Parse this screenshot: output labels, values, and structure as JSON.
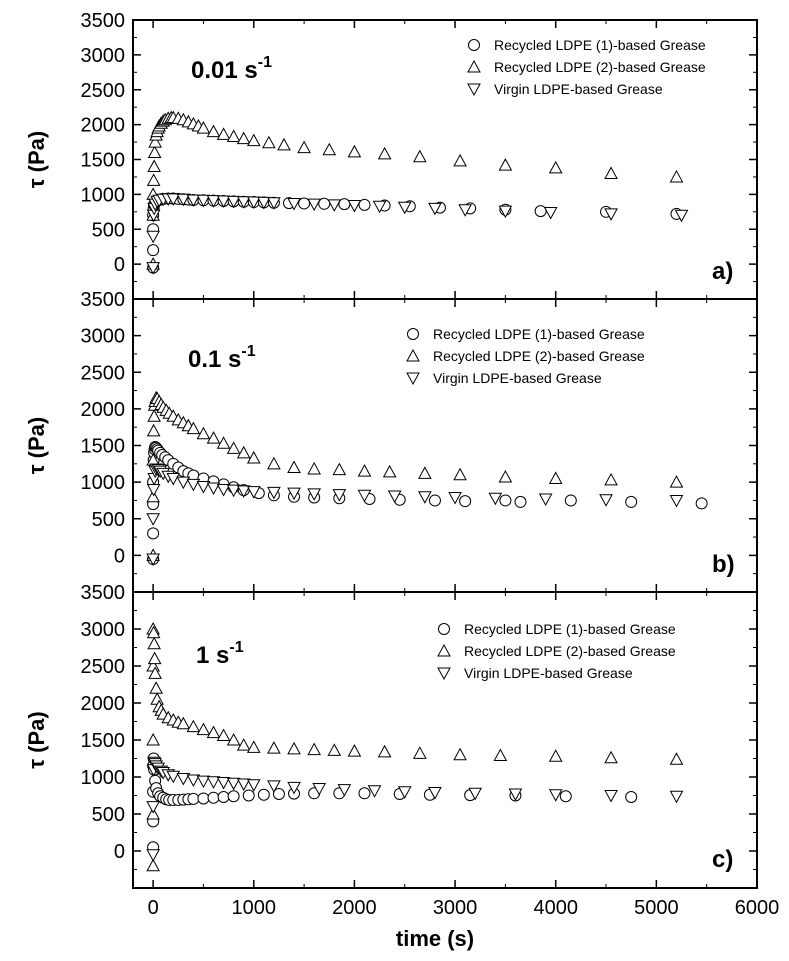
{
  "figure": {
    "xlabel": "time (s)",
    "ylabel": "τ (Pa)",
    "xlim": [
      -200,
      6000
    ],
    "ylim": [
      -500,
      3500
    ],
    "xticks": [
      0,
      1000,
      2000,
      3000,
      4000,
      5000,
      6000
    ],
    "yticks": [
      0,
      500,
      1000,
      1500,
      2000,
      2500,
      3000,
      3500
    ]
  },
  "chart_data": [
    {
      "type": "scatter",
      "panel": "a",
      "rate_main": "0.01 s",
      "rate_sup": "-1",
      "xlabel": "time (s)",
      "ylabel": "τ (Pa)",
      "xlim": [
        -200,
        6000
      ],
      "ylim": [
        -500,
        3500
      ],
      "legend_position": "top-right",
      "series": [
        {
          "name": "Recycled LDPE (1)-based Grease",
          "marker": "circle",
          "x": [
            0,
            0,
            0,
            0,
            5,
            10,
            15,
            20,
            30,
            40,
            60,
            80,
            100,
            150,
            200,
            250,
            300,
            350,
            400,
            500,
            600,
            700,
            800,
            900,
            1000,
            1100,
            1200,
            1350,
            1500,
            1700,
            1900,
            2100,
            2300,
            2550,
            2850,
            3150,
            3500,
            3850,
            4500,
            5200
          ],
          "y": [
            -50,
            200,
            500,
            700,
            800,
            850,
            870,
            880,
            900,
            910,
            920,
            930,
            935,
            940,
            940,
            935,
            930,
            925,
            920,
            915,
            910,
            905,
            900,
            895,
            890,
            885,
            880,
            875,
            870,
            865,
            860,
            850,
            840,
            830,
            810,
            800,
            780,
            760,
            750,
            720
          ]
        },
        {
          "name": "Recycled LDPE (2)-based Grease",
          "marker": "triangle-up",
          "x": [
            0,
            0,
            0,
            5,
            10,
            15,
            20,
            30,
            40,
            50,
            60,
            80,
            100,
            120,
            150,
            180,
            200,
            250,
            300,
            350,
            400,
            450,
            500,
            600,
            700,
            800,
            900,
            1000,
            1150,
            1300,
            1500,
            1750,
            2000,
            2300,
            2650,
            3050,
            3500,
            4000,
            4550,
            5200
          ],
          "y": [
            0,
            700,
            1000,
            1200,
            1400,
            1600,
            1750,
            1850,
            1900,
            1950,
            1980,
            2020,
            2050,
            2070,
            2090,
            2100,
            2100,
            2090,
            2070,
            2040,
            2010,
            1980,
            1950,
            1900,
            1860,
            1830,
            1800,
            1770,
            1740,
            1710,
            1670,
            1640,
            1610,
            1580,
            1540,
            1480,
            1420,
            1380,
            1300,
            1250
          ]
        },
        {
          "name": "Virgin LDPE-based Grease",
          "marker": "triangle-down",
          "x": [
            0,
            0,
            5,
            10,
            20,
            40,
            60,
            100,
            150,
            200,
            300,
            400,
            500,
            600,
            700,
            800,
            900,
            1000,
            1100,
            1200,
            1400,
            1600,
            1800,
            2000,
            2250,
            2500,
            2800,
            3100,
            3500,
            3950,
            4550,
            5250
          ],
          "y": [
            -50,
            400,
            700,
            800,
            860,
            900,
            915,
            930,
            935,
            935,
            930,
            920,
            915,
            910,
            905,
            900,
            895,
            890,
            885,
            880,
            870,
            860,
            850,
            840,
            830,
            815,
            800,
            780,
            760,
            740,
            720,
            700
          ]
        }
      ],
      "annotations": [
        "a)"
      ]
    },
    {
      "type": "scatter",
      "panel": "b",
      "rate_main": "0.1 s",
      "rate_sup": "-1",
      "xlabel": "time (s)",
      "ylabel": "τ (Pa)",
      "xlim": [
        -200,
        6000
      ],
      "ylim": [
        -500,
        3500
      ],
      "legend_position": "top-right",
      "series": [
        {
          "name": "Recycled LDPE (1)-based Grease",
          "marker": "circle",
          "x": [
            0,
            0,
            0,
            0,
            5,
            10,
            15,
            20,
            30,
            40,
            50,
            70,
            90,
            120,
            150,
            200,
            250,
            300,
            350,
            400,
            500,
            600,
            700,
            800,
            900,
            1050,
            1200,
            1400,
            1600,
            1850,
            2150,
            2450,
            2800,
            3100,
            3500,
            3650,
            4150,
            4750,
            5450
          ],
          "y": [
            -50,
            300,
            700,
            1000,
            1300,
            1400,
            1450,
            1480,
            1470,
            1450,
            1430,
            1400,
            1370,
            1340,
            1300,
            1250,
            1200,
            1150,
            1120,
            1090,
            1050,
            1010,
            970,
            930,
            890,
            850,
            820,
            800,
            790,
            780,
            770,
            760,
            750,
            740,
            750,
            730,
            750,
            730,
            710
          ]
        },
        {
          "name": "Recycled LDPE (2)-based Grease",
          "marker": "triangle-up",
          "x": [
            0,
            0,
            0,
            5,
            10,
            15,
            20,
            30,
            40,
            60,
            80,
            100,
            130,
            160,
            200,
            250,
            300,
            350,
            400,
            500,
            600,
            700,
            800,
            900,
            1000,
            1200,
            1400,
            1600,
            1850,
            2100,
            2350,
            2700,
            3050,
            3500,
            4000,
            4550,
            5200
          ],
          "y": [
            0,
            800,
            1300,
            1700,
            1900,
            2050,
            2100,
            2150,
            2140,
            2100,
            2060,
            2020,
            1980,
            1940,
            1900,
            1850,
            1810,
            1770,
            1730,
            1660,
            1600,
            1530,
            1460,
            1400,
            1330,
            1250,
            1200,
            1180,
            1170,
            1150,
            1140,
            1120,
            1100,
            1070,
            1050,
            1030,
            1000
          ]
        },
        {
          "name": "Virgin LDPE-based Grease",
          "marker": "triangle-down",
          "x": [
            0,
            0,
            5,
            10,
            20,
            30,
            50,
            70,
            100,
            150,
            200,
            300,
            400,
            500,
            600,
            700,
            800,
            900,
            1000,
            1200,
            1400,
            1600,
            1850,
            2100,
            2400,
            2700,
            3000,
            3400,
            3900,
            4500,
            5200
          ],
          "y": [
            -50,
            500,
            900,
            1050,
            1150,
            1180,
            1170,
            1150,
            1120,
            1080,
            1050,
            1000,
            970,
            940,
            920,
            900,
            890,
            880,
            870,
            860,
            850,
            840,
            830,
            820,
            810,
            800,
            790,
            780,
            770,
            760,
            750
          ]
        }
      ],
      "annotations": [
        "b)"
      ]
    },
    {
      "type": "scatter",
      "panel": "c",
      "rate_main": "1 s",
      "rate_sup": "-1",
      "xlabel": "time (s)",
      "ylabel": "τ (Pa)",
      "xlim": [
        -200,
        6000
      ],
      "ylim": [
        -500,
        3500
      ],
      "legend_position": "top-right",
      "series": [
        {
          "name": "Recycled LDPE (1)-based Grease",
          "marker": "circle",
          "x": [
            0,
            0,
            0,
            0,
            5,
            10,
            20,
            30,
            50,
            70,
            100,
            130,
            160,
            200,
            250,
            300,
            350,
            400,
            500,
            600,
            700,
            800,
            950,
            1100,
            1250,
            1400,
            1600,
            1850,
            2100,
            2450,
            2750,
            3150,
            3600,
            4100,
            4750
          ],
          "y": [
            50,
            400,
            800,
            1150,
            1250,
            1100,
            950,
            850,
            780,
            740,
            720,
            700,
            690,
            690,
            690,
            695,
            700,
            705,
            710,
            720,
            730,
            740,
            750,
            760,
            770,
            775,
            780,
            780,
            780,
            770,
            760,
            755,
            750,
            740,
            730
          ]
        },
        {
          "name": "Recycled LDPE (2)-based Grease",
          "marker": "triangle-up",
          "x": [
            0,
            0,
            0,
            0,
            0,
            5,
            10,
            15,
            20,
            30,
            40,
            60,
            80,
            100,
            150,
            200,
            250,
            300,
            400,
            500,
            600,
            700,
            800,
            900,
            1000,
            1200,
            1400,
            1600,
            1800,
            2000,
            2300,
            2650,
            3050,
            3450,
            4000,
            4550,
            5200
          ],
          "y": [
            -200,
            500,
            1500,
            2500,
            3000,
            2950,
            2800,
            2600,
            2400,
            2200,
            2050,
            1950,
            1900,
            1850,
            1800,
            1770,
            1740,
            1720,
            1680,
            1640,
            1600,
            1560,
            1500,
            1430,
            1400,
            1390,
            1380,
            1370,
            1360,
            1350,
            1340,
            1320,
            1300,
            1290,
            1280,
            1260,
            1240
          ]
        },
        {
          "name": "Virgin LDPE-based Grease",
          "marker": "triangle-down",
          "x": [
            0,
            0,
            5,
            10,
            20,
            30,
            50,
            80,
            100,
            150,
            200,
            300,
            400,
            500,
            600,
            700,
            800,
            900,
            1000,
            1200,
            1400,
            1650,
            1900,
            2200,
            2500,
            2800,
            3200,
            3600,
            4000,
            4550,
            5200
          ],
          "y": [
            -50,
            600,
            1100,
            1200,
            1180,
            1150,
            1120,
            1080,
            1060,
            1030,
            1010,
            980,
            960,
            945,
            935,
            925,
            915,
            905,
            895,
            880,
            860,
            845,
            830,
            815,
            800,
            790,
            780,
            770,
            760,
            750,
            740
          ]
        }
      ],
      "annotations": [
        "c)"
      ]
    }
  ],
  "colors": {
    "axis": "#000000",
    "marker_stroke": "#000000",
    "marker_fill": "#ffffff",
    "background": "#ffffff"
  }
}
